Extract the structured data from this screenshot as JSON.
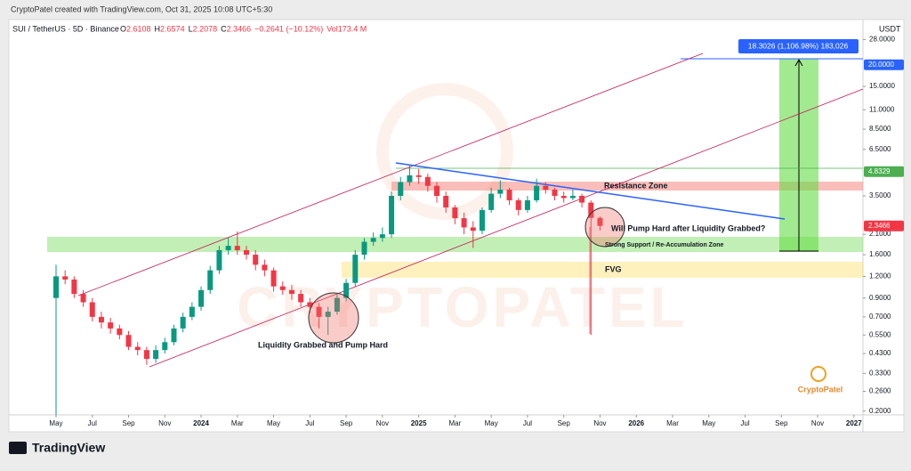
{
  "chart_data": {
    "type": "candlestick",
    "attribution": "CryptoPatel created with TradingView.com, Oct 31, 2025 10:08 UTC+5:30",
    "symbol": "SUI / TetherUS · 5D · Binance",
    "ohlc_text": [
      {
        "label": "O",
        "value": "2.6108"
      },
      {
        "label": "H",
        "value": "2.6574"
      },
      {
        "label": "L",
        "value": "2.2078"
      },
      {
        "label": "C",
        "value": "2.3466"
      }
    ],
    "change_text": "−0.2641 (−10.12%)",
    "volume_text": "Vol173.4 M",
    "currency": "USDT",
    "measure_label": "18.3026 (1,106.98%) 183,026",
    "annotations": [
      "Resistance Zone",
      "Will Pump Hard after Liquidity Grabbed?",
      "Strong Support / Re-Accumulation Zone",
      "FVG",
      "Liquidity Grabbed and Pump Hard"
    ],
    "watermark": "CRYPTOPATEL",
    "logo_text": "CryptoPatel",
    "brand": "TradingView",
    "log_scale": true,
    "up_color": "#089981",
    "down_color": "#f23645",
    "xlim": [
      -2.6,
      44.5
    ],
    "ylim": [
      0.19,
      34
    ],
    "xticks": [
      {
        "value": 0,
        "label": "May"
      },
      {
        "value": 2,
        "label": "Jul"
      },
      {
        "value": 4,
        "label": "Sep"
      },
      {
        "value": 6,
        "label": "Nov"
      },
      {
        "value": 8,
        "label": "2024"
      },
      {
        "value": 10,
        "label": "Mar"
      },
      {
        "value": 12,
        "label": "May"
      },
      {
        "value": 14,
        "label": "Jul"
      },
      {
        "value": 16,
        "label": "Sep"
      },
      {
        "value": 18,
        "label": "Nov"
      },
      {
        "value": 20,
        "label": "2025"
      },
      {
        "value": 22,
        "label": "Mar"
      },
      {
        "value": 24,
        "label": "May"
      },
      {
        "value": 26,
        "label": "Jul"
      },
      {
        "value": 28,
        "label": "Sep"
      },
      {
        "value": 30,
        "label": "Nov"
      },
      {
        "value": 32,
        "label": "2026"
      },
      {
        "value": 34,
        "label": "Mar"
      },
      {
        "value": 36,
        "label": "May"
      },
      {
        "value": 38,
        "label": "Jul"
      },
      {
        "value": 40,
        "label": "Sep"
      },
      {
        "value": 42,
        "label": "Nov"
      },
      {
        "value": 44,
        "label": "2027"
      }
    ],
    "yticks": [
      {
        "value": 28,
        "label": "28.0000"
      },
      {
        "value": 15,
        "label": "15.0000"
      },
      {
        "value": 11,
        "label": "11.0000"
      },
      {
        "value": 8.5,
        "label": "8.5000"
      },
      {
        "value": 6.5,
        "label": "6.5000"
      },
      {
        "value": 3.5,
        "label": "3.5000"
      },
      {
        "value": 2.1,
        "label": "2.1000"
      },
      {
        "value": 1.6,
        "label": "1.6000"
      },
      {
        "value": 1.2,
        "label": "1.2000"
      },
      {
        "value": 0.9,
        "label": "0.9000"
      },
      {
        "value": 0.7,
        "label": "0.7000"
      },
      {
        "value": 0.55,
        "label": "0.5500"
      },
      {
        "value": 0.43,
        "label": "0.4300"
      },
      {
        "value": 0.33,
        "label": "0.3300"
      },
      {
        "value": 0.26,
        "label": "0.2600"
      },
      {
        "value": 0.2,
        "label": "0.2000"
      }
    ],
    "price_labels": [
      {
        "value": 20,
        "label": "20.0000",
        "color": "#2962ff"
      },
      {
        "value": 4.8329,
        "label": "4.8329",
        "color": "#4caf50"
      },
      {
        "value": 2.3466,
        "label": "2.3466",
        "color": "#f23645"
      }
    ],
    "x": [
      0,
      0.5,
      1,
      1.5,
      2,
      2.5,
      3,
      3.5,
      4,
      4.5,
      5,
      5.5,
      6,
      6.5,
      7,
      7.5,
      8,
      8.5,
      9,
      9.5,
      10,
      10.5,
      11,
      11.5,
      12,
      12.5,
      13,
      13.5,
      14,
      14.5,
      15,
      15.5,
      16,
      16.5,
      17,
      17.5,
      18,
      18.5,
      19,
      19.5,
      20,
      20.5,
      21,
      21.5,
      22,
      22.5,
      23,
      23.5,
      24,
      24.5,
      25,
      25.5,
      26,
      26.5,
      27,
      27.5,
      28,
      28.5,
      29,
      29.5,
      30
    ],
    "open": [
      0.9,
      1.2,
      1.15,
      0.95,
      0.85,
      0.7,
      0.65,
      0.6,
      0.55,
      0.47,
      0.45,
      0.4,
      0.45,
      0.5,
      0.6,
      0.7,
      0.8,
      1.0,
      1.3,
      1.7,
      1.8,
      1.7,
      1.6,
      1.4,
      1.3,
      1.05,
      1.0,
      0.95,
      0.85,
      0.8,
      0.7,
      0.75,
      0.9,
      1.1,
      1.6,
      1.9,
      2.0,
      2.1,
      3.5,
      4.2,
      4.6,
      4.5,
      4.0,
      3.5,
      3.0,
      2.6,
      2.3,
      2.2,
      2.9,
      3.6,
      3.8,
      3.3,
      2.9,
      3.3,
      4.0,
      3.8,
      3.5,
      3.4,
      3.5,
      3.2,
      2.6108
    ],
    "high": [
      1.4,
      1.3,
      1.2,
      1.0,
      0.9,
      0.75,
      0.69,
      0.63,
      0.58,
      0.5,
      0.47,
      0.48,
      0.53,
      0.63,
      0.74,
      0.85,
      1.05,
      1.38,
      1.8,
      2.0,
      2.18,
      1.8,
      1.7,
      1.5,
      1.35,
      1.12,
      1.07,
      1.0,
      0.9,
      0.84,
      0.8,
      0.95,
      1.16,
      1.7,
      2.0,
      2.15,
      2.3,
      3.7,
      4.5,
      5.3,
      5.0,
      4.7,
      4.2,
      3.7,
      3.1,
      2.8,
      2.5,
      3.0,
      3.9,
      4.3,
      3.9,
      3.4,
      3.5,
      4.4,
      4.2,
      3.9,
      3.7,
      3.8,
      3.6,
      3.3,
      2.6574
    ],
    "low": [
      0.19,
      1.08,
      0.9,
      0.8,
      0.66,
      0.6,
      0.56,
      0.52,
      0.45,
      0.42,
      0.37,
      0.38,
      0.43,
      0.48,
      0.57,
      0.67,
      0.76,
      0.95,
      1.24,
      1.6,
      1.6,
      1.5,
      1.3,
      1.2,
      0.98,
      0.94,
      0.88,
      0.8,
      0.74,
      0.6,
      0.55,
      0.72,
      0.86,
      1.05,
      1.5,
      1.8,
      1.9,
      2.0,
      3.3,
      4.0,
      4.1,
      3.7,
      3.2,
      2.8,
      2.4,
      2.1,
      1.75,
      2.1,
      2.8,
      3.4,
      3.1,
      2.7,
      2.8,
      3.2,
      3.6,
      3.3,
      3.2,
      3.3,
      3.0,
      0.55,
      2.2078
    ],
    "close": [
      1.2,
      1.15,
      0.95,
      0.85,
      0.7,
      0.65,
      0.6,
      0.55,
      0.47,
      0.45,
      0.4,
      0.45,
      0.5,
      0.6,
      0.7,
      0.8,
      1.0,
      1.3,
      1.7,
      1.8,
      1.7,
      1.6,
      1.4,
      1.3,
      1.05,
      1.0,
      0.95,
      0.85,
      0.8,
      0.7,
      0.75,
      0.9,
      1.1,
      1.6,
      1.9,
      2.0,
      2.1,
      3.5,
      4.2,
      4.6,
      4.5,
      4.0,
      3.5,
      3.0,
      2.6,
      2.3,
      2.2,
      2.9,
      3.6,
      3.8,
      3.3,
      2.9,
      3.3,
      4.0,
      3.8,
      3.5,
      3.4,
      3.5,
      3.2,
      2.6108,
      2.3466
    ]
  }
}
